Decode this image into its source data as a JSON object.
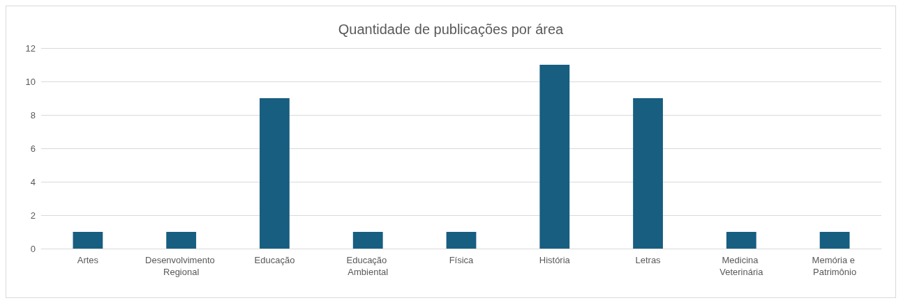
{
  "chart_data": {
    "type": "bar",
    "title": "Quantidade de publicações por área",
    "categories": [
      "Artes",
      "Desenvolvimento Regional",
      "Educação",
      "Educação Ambiental",
      "Física",
      "História",
      "Letras",
      "Medicina Veterinária",
      "Memória e Patrimônio"
    ],
    "values": [
      1,
      1,
      9,
      1,
      1,
      11,
      9,
      1,
      1
    ],
    "color": "#175e81",
    "ylim": [
      0,
      12
    ],
    "yticks": [
      0,
      2,
      4,
      6,
      8,
      10,
      12
    ],
    "grid": "y"
  }
}
